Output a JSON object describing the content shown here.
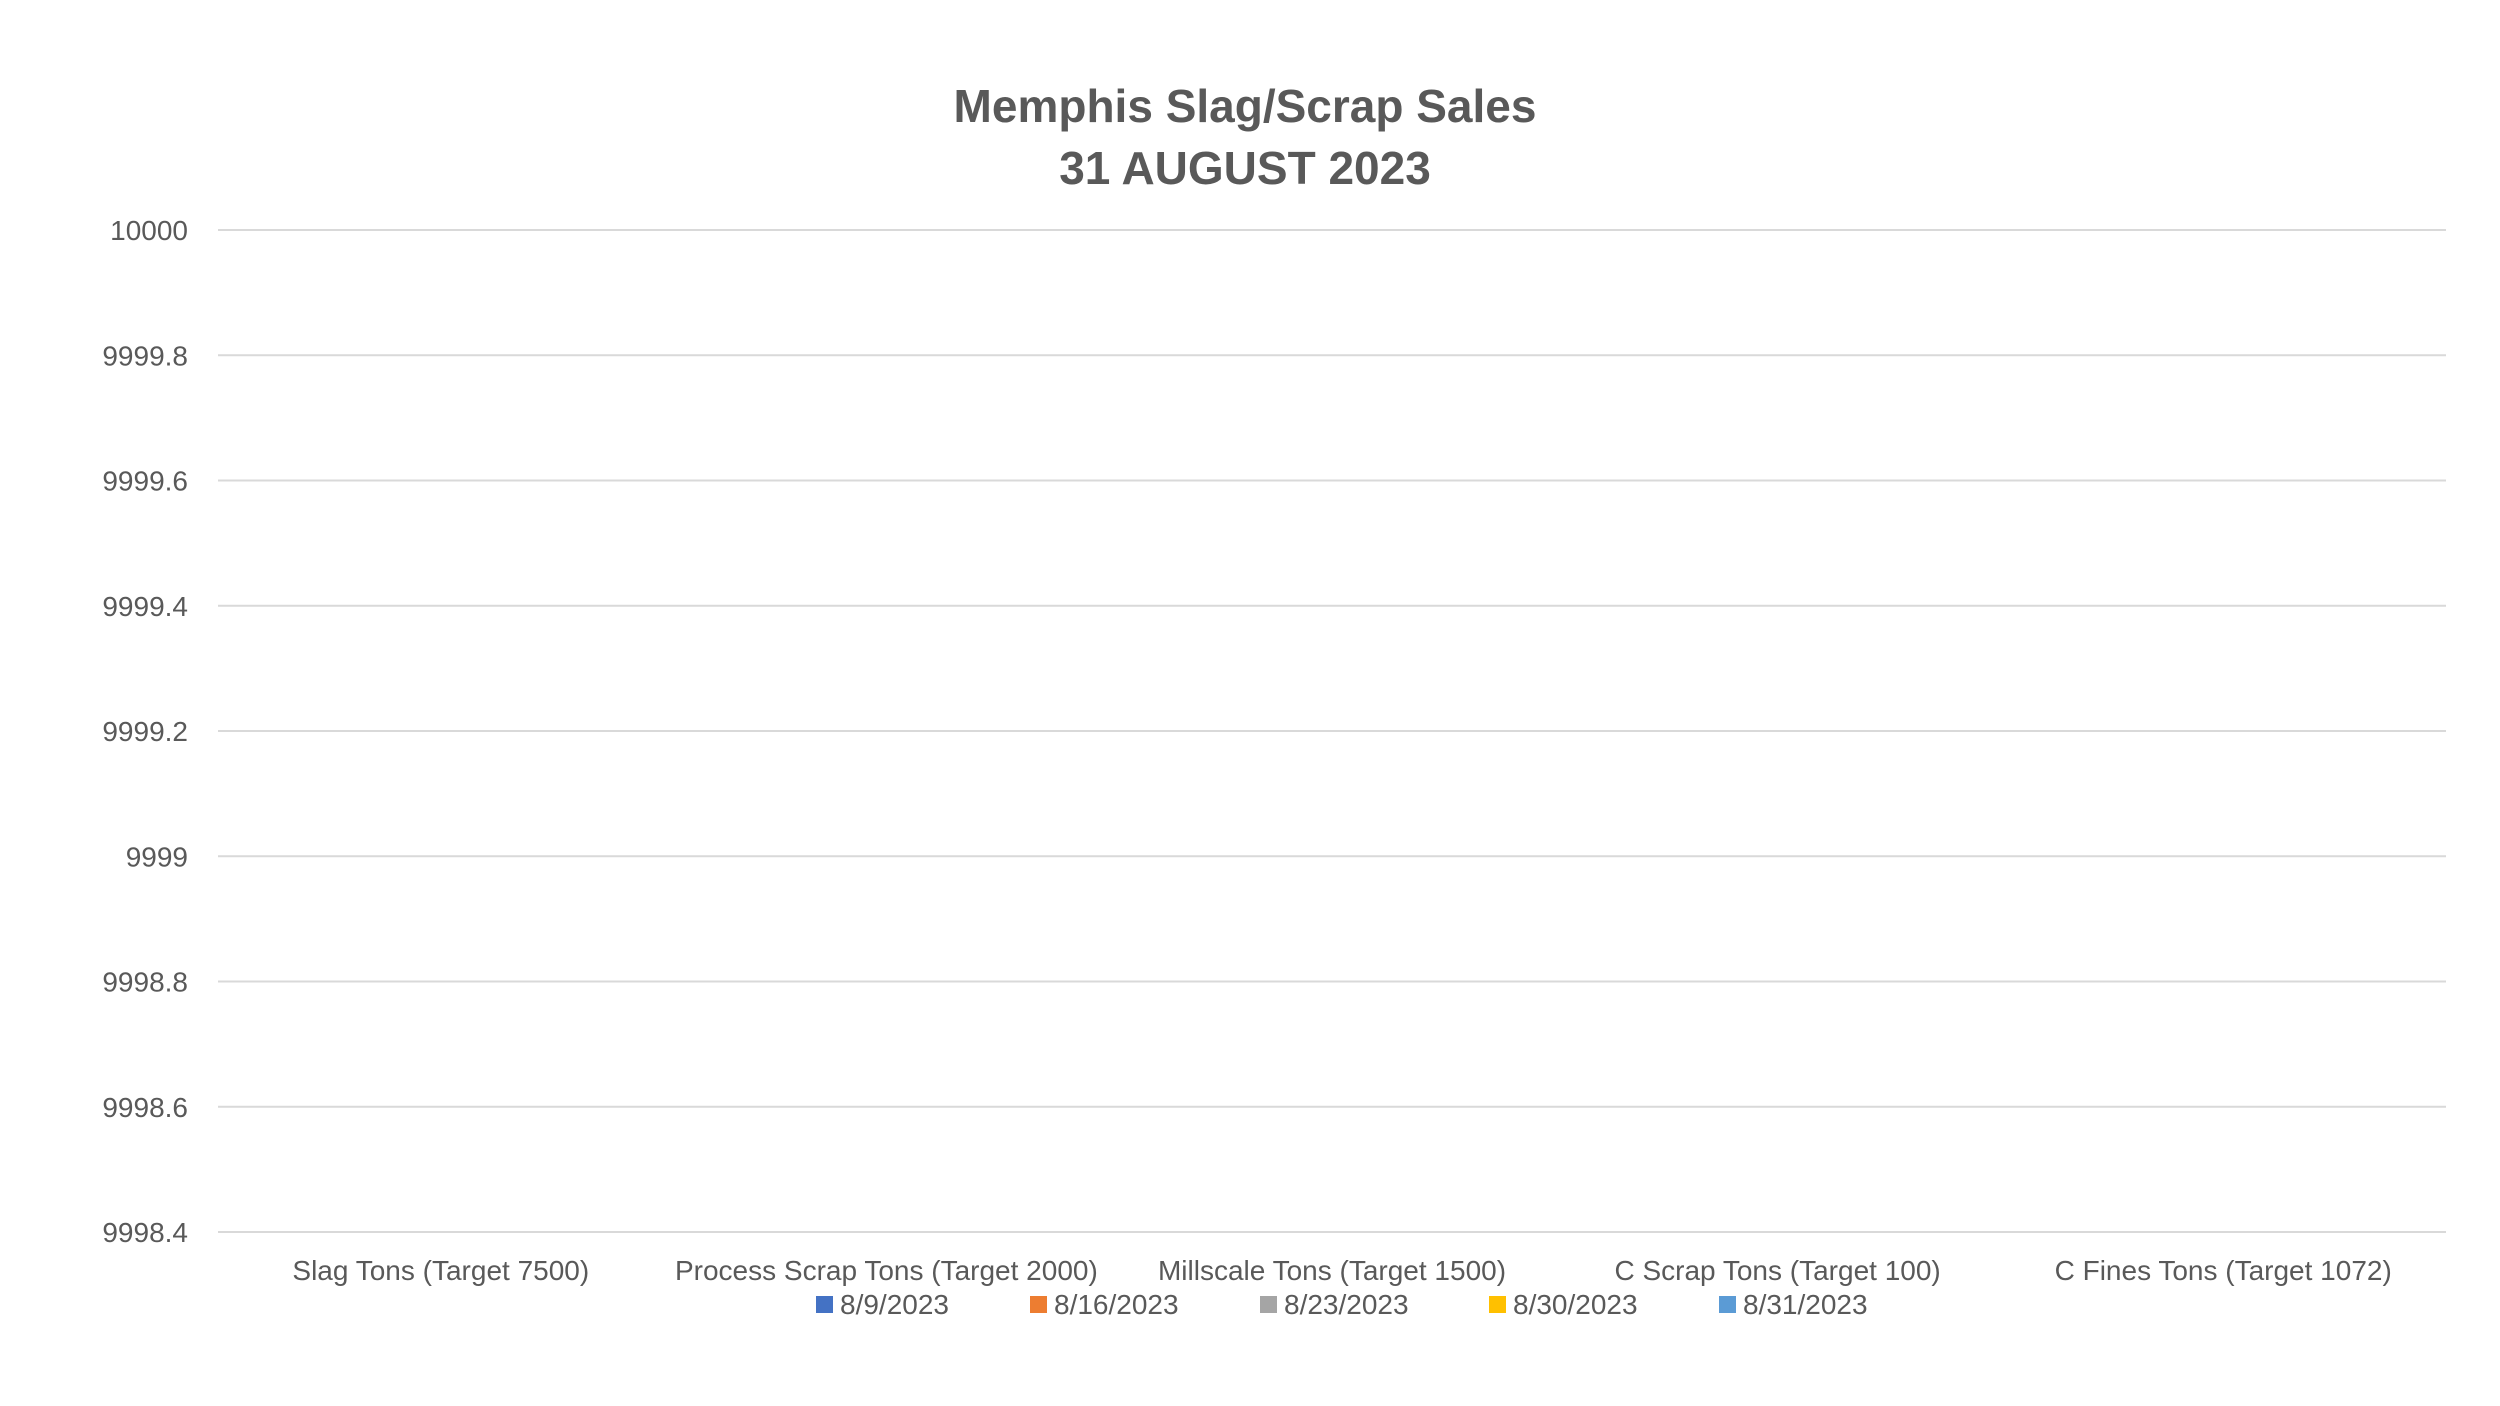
{
  "chart_data": {
    "type": "bar",
    "title": "Memphis Slag/Scrap Sales",
    "subtitle": "31 AUGUST 2023",
    "xlabel": "",
    "ylabel": "",
    "categories": [
      "Slag Tons (Target 7500)",
      "Process Scrap Tons (Target 2000)",
      "Millscale Tons (Target 1500)",
      "C Scrap Tons (Target 100)",
      "C Fines Tons (Target 1072)"
    ],
    "series": [
      {
        "name": "8/9/2023",
        "color": "#4472C4",
        "values": [
          null,
          null,
          null,
          null,
          null
        ]
      },
      {
        "name": "8/16/2023",
        "color": "#ED7D31",
        "values": [
          null,
          null,
          null,
          null,
          null
        ]
      },
      {
        "name": "8/23/2023",
        "color": "#A5A5A5",
        "values": [
          null,
          null,
          null,
          null,
          null
        ]
      },
      {
        "name": "8/30/2023",
        "color": "#FFC000",
        "values": [
          null,
          null,
          null,
          null,
          null
        ]
      },
      {
        "name": "8/31/2023",
        "color": "#5B9BD5",
        "values": [
          null,
          null,
          null,
          null,
          null
        ]
      }
    ],
    "ylim": [
      9998.4,
      10000
    ],
    "yticks": [
      "10000",
      "9999.8",
      "9999.6",
      "9999.4",
      "9999.2",
      "9999",
      "9998.8",
      "9998.6",
      "9998.4"
    ],
    "grid": true,
    "legend_position": "bottom"
  }
}
